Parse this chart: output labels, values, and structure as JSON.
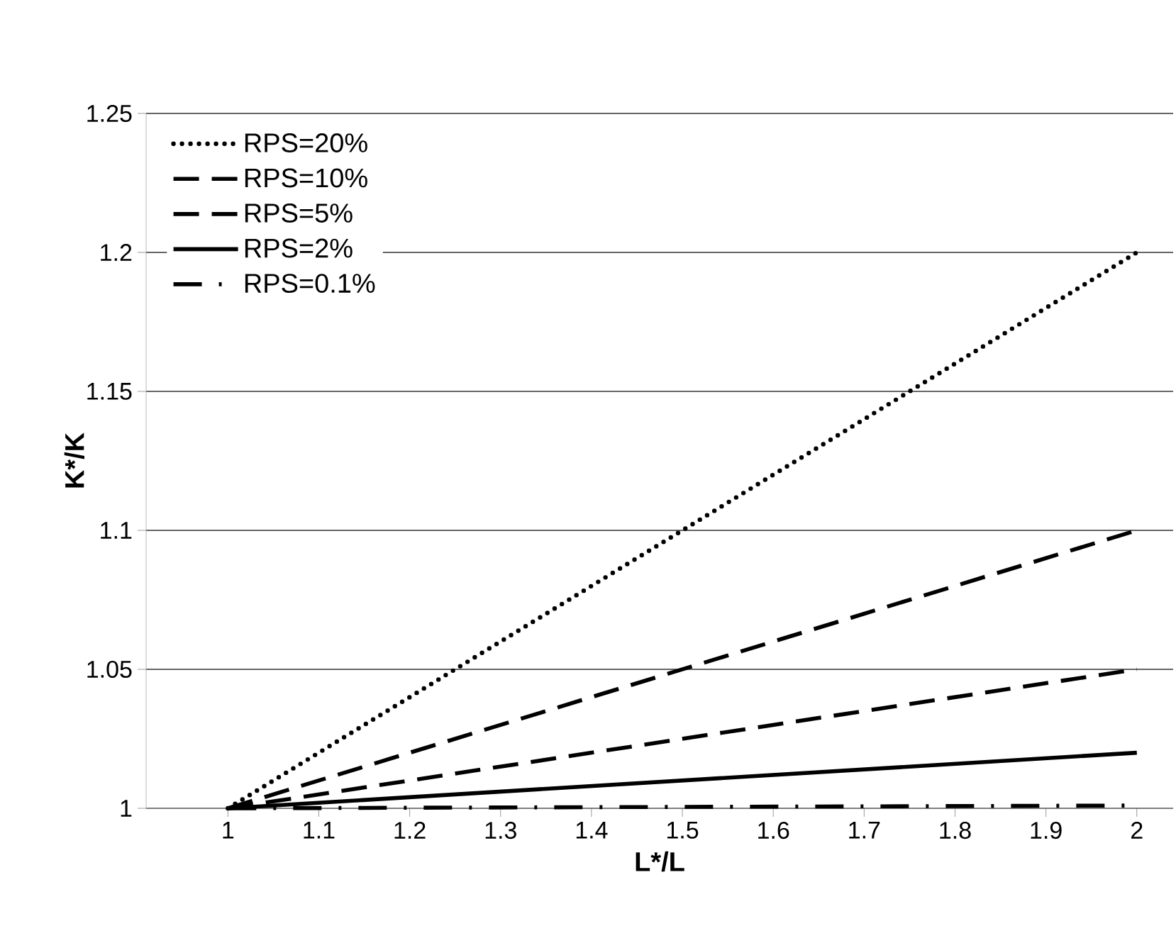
{
  "chart_data": {
    "type": "line",
    "xlabel": "L*/L",
    "ylabel": "K*/K",
    "xlim": [
      0.91,
      2.04
    ],
    "xticks": [
      1,
      1.1,
      1.2,
      1.3,
      1.4,
      1.5,
      1.6,
      1.7,
      1.8,
      1.9,
      2
    ],
    "ylim": [
      1,
      1.25
    ],
    "yticks": [
      1,
      1.05,
      1.1,
      1.15,
      1.2,
      1.25
    ],
    "x": [
      1,
      2
    ],
    "grid": "y",
    "legend": "top left",
    "marker": "none",
    "series": [
      {
        "name": "RPS=20%",
        "color": "#000000",
        "line_style": "dotted",
        "values": [
          1,
          1.2
        ]
      },
      {
        "name": "RPS=10%",
        "color": "#000000",
        "line_style": "dashed",
        "values": [
          1,
          1.1
        ]
      },
      {
        "name": "RPS=5%",
        "color": "#000000",
        "line_style": "dashed",
        "values": [
          1,
          1.05
        ]
      },
      {
        "name": "RPS=2%",
        "color": "#000000",
        "line_style": "solid",
        "values": [
          1,
          1.02
        ]
      },
      {
        "name": "RPS=0.1%",
        "color": "#000000",
        "line_style": "dashdot",
        "values": [
          1,
          1.001
        ]
      }
    ]
  }
}
